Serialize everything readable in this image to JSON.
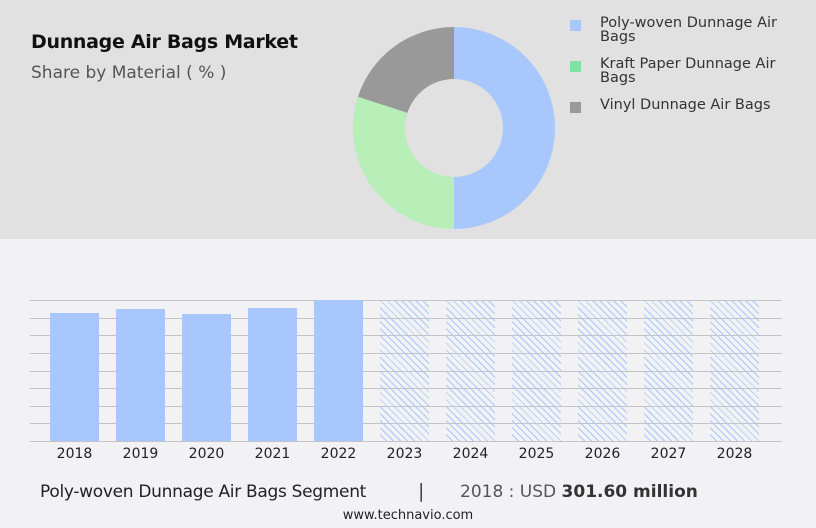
{
  "header": {
    "title": "Dunnage Air Bags Market",
    "subtitle": "Share by Material ( % )"
  },
  "legend": [
    {
      "label": "Poly-woven Dunnage Air Bags",
      "color": "#a8c8fd"
    },
    {
      "label": "Kraft Paper Dunnage Air Bags",
      "color": "#7ee3a0"
    },
    {
      "label": "Vinyl Dunnage Air Bags",
      "color": "#999999"
    }
  ],
  "footer": {
    "segment": "Poly-woven Dunnage Air Bags Segment",
    "separator": "|",
    "value_prefix": "2018 : USD",
    "value": "301.60 million",
    "website": "www.technavio.com"
  },
  "chart_data": [
    {
      "type": "pie",
      "title": "Dunnage Air Bags Market",
      "subtitle": "Share by Material ( % )",
      "donut": true,
      "categories": [
        "Poly-woven Dunnage Air Bags",
        "Kraft Paper Dunnage Air Bags",
        "Vinyl Dunnage Air Bags"
      ],
      "values": [
        50,
        30,
        20
      ],
      "colors": [
        "#a8c8fd",
        "#b8eeb8",
        "#999999"
      ],
      "legend_position": "right"
    },
    {
      "type": "bar",
      "title": "",
      "categories": [
        "2018",
        "2019",
        "2020",
        "2021",
        "2022",
        "2023",
        "2024",
        "2025",
        "2026",
        "2027",
        "2028"
      ],
      "values": [
        301.6,
        311.5,
        299.5,
        313,
        333,
        null,
        null,
        null,
        null,
        null,
        null
      ],
      "forecast_placeholder": [
        false,
        false,
        false,
        false,
        false,
        true,
        true,
        true,
        true,
        true,
        true
      ],
      "xlabel": "",
      "ylabel": "",
      "grid": true,
      "ylim": [
        0,
        333
      ],
      "color": "#a8c8fd"
    }
  ]
}
